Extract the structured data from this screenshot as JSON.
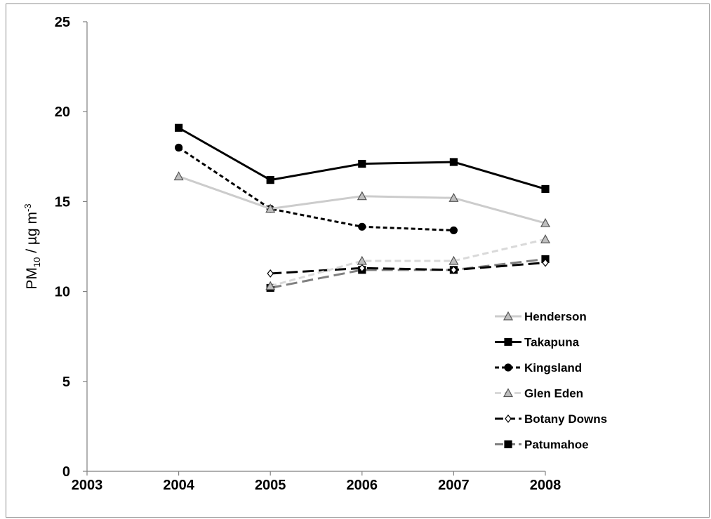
{
  "chart_data": {
    "type": "line",
    "xlabel": "",
    "ylabel": {
      "main": "PM",
      "sub": "10",
      "mid": " / µg m",
      "sup": "-3"
    },
    "xlim": [
      2003,
      2008
    ],
    "ylim": [
      0,
      25
    ],
    "x_ticks": [
      "2003",
      "2004",
      "2005",
      "2006",
      "2007",
      "2008"
    ],
    "y_ticks": [
      "0",
      "5",
      "10",
      "15",
      "20",
      "25"
    ],
    "grid": false,
    "legend_position": "bottom-right",
    "series": [
      {
        "name": "Henderson",
        "x": [
          2004,
          2005,
          2006,
          2007,
          2008
        ],
        "values": [
          16.4,
          14.6,
          15.3,
          15.2,
          13.8
        ],
        "color": "#cccccc",
        "dash": "solid",
        "marker": "triangle",
        "marker_fill": "#bfbfbf",
        "marker_stroke": "#555555"
      },
      {
        "name": "Takapuna",
        "x": [
          2004,
          2005,
          2006,
          2007,
          2008
        ],
        "values": [
          19.1,
          16.2,
          17.1,
          17.2,
          15.7
        ],
        "color": "#000000",
        "dash": "solid",
        "marker": "square",
        "marker_fill": "#000000",
        "marker_stroke": "#000000"
      },
      {
        "name": "Kingsland",
        "x": [
          2004,
          2005,
          2006,
          2007
        ],
        "values": [
          18.0,
          14.6,
          13.6,
          13.4
        ],
        "color": "#000000",
        "dash": "short",
        "marker": "circle",
        "marker_fill": "#000000",
        "marker_stroke": "#000000"
      },
      {
        "name": "Glen Eden",
        "x": [
          2005,
          2006,
          2007,
          2008
        ],
        "values": [
          10.3,
          11.7,
          11.7,
          12.9
        ],
        "color": "#d9d9d9",
        "dash": "medium",
        "marker": "triangle",
        "marker_fill": "#bfbfbf",
        "marker_stroke": "#555555"
      },
      {
        "name": "Botany Downs",
        "x": [
          2005,
          2006,
          2007,
          2008
        ],
        "values": [
          11.0,
          11.3,
          11.2,
          11.6
        ],
        "color": "#000000",
        "dash": "long",
        "marker": "diamond",
        "marker_fill": "#ffffff",
        "marker_stroke": "#000000"
      },
      {
        "name": "Patumahoe",
        "x": [
          2005,
          2006,
          2007,
          2008
        ],
        "values": [
          10.2,
          11.2,
          11.2,
          11.8
        ],
        "color": "#808080",
        "dash": "long",
        "marker": "square",
        "marker_fill": "#000000",
        "marker_stroke": "#000000"
      }
    ]
  }
}
